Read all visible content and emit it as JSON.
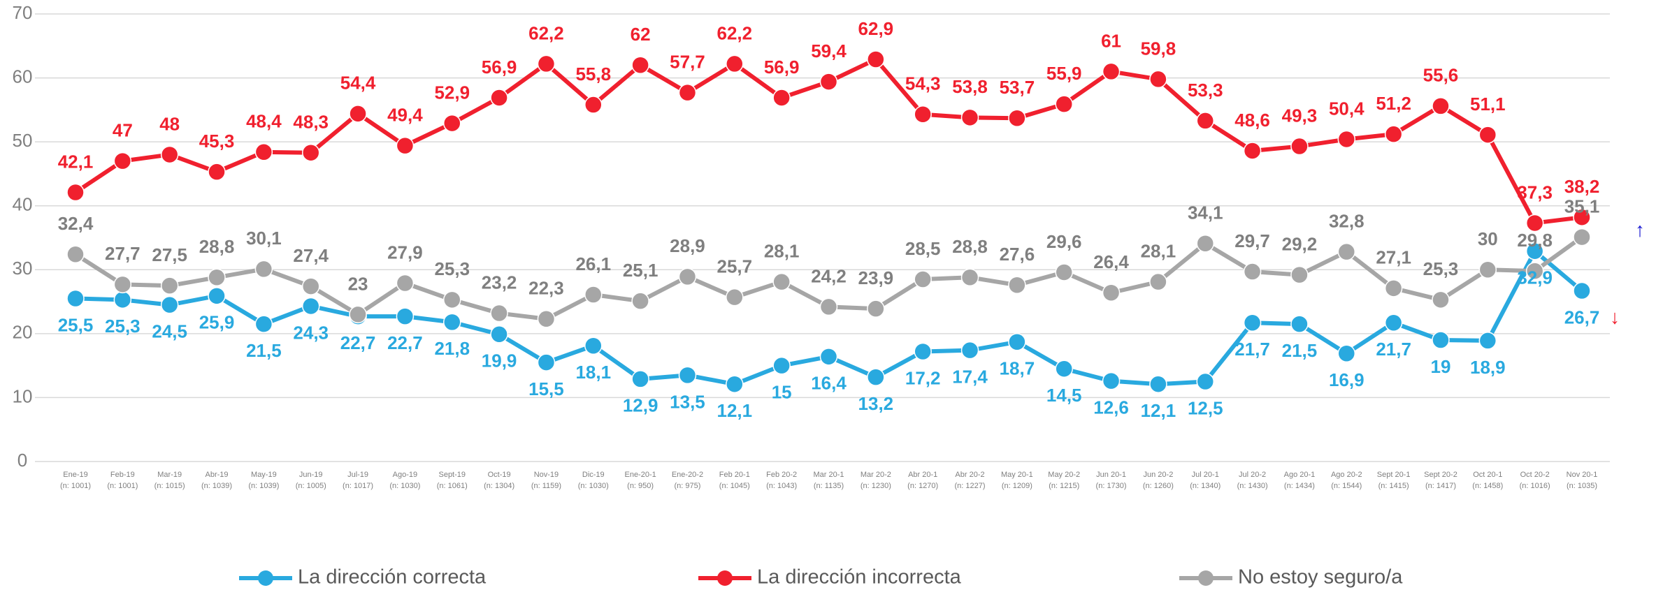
{
  "chart_data": {
    "type": "line",
    "categories": [
      "Ene-19",
      "Feb-19",
      "Mar-19",
      "Abr-19",
      "May-19",
      "Jun-19",
      "Jul-19",
      "Ago-19",
      "Sept-19",
      "Oct-19",
      "Nov-19",
      "Dic-19",
      "Ene-20-1",
      "Ene-20-2",
      "Feb 20-1",
      "Feb 20-2",
      "Mar 20-1",
      "Mar 20-2",
      "Abr 20-1",
      "Abr 20-2",
      "May 20-1",
      "May 20-2",
      "Jun 20-1",
      "Jun 20-2",
      "Jul 20-1",
      "Jul 20-2",
      "Ago 20-1",
      "Ago 20-2",
      "Sept 20-1",
      "Sept 20-2",
      "Oct 20-1",
      "Oct 20-2",
      "Nov 20-1"
    ],
    "category_notes": [
      "(n: 1001)",
      "(n: 1001)",
      "(n: 1015)",
      "(n: 1039)",
      "(n: 1039)",
      "(n: 1005)",
      "(n: 1017)",
      "(n: 1030)",
      "(n: 1061)",
      "(n: 1304)",
      "(n: 1159)",
      "(n: 1030)",
      "(n: 950)",
      "(n: 975)",
      "(n: 1045)",
      "(n: 1043)",
      "(n: 1135)",
      "(n: 1230)",
      "(n: 1270)",
      "(n: 1227)",
      "(n: 1209)",
      "(n: 1215)",
      "(n: 1730)",
      "(n: 1260)",
      "(n: 1340)",
      "(n: 1430)",
      "(n: 1434)",
      "(n: 1544)",
      "(n: 1415)",
      "(n: 1417)",
      "(n: 1458)",
      "(n: 1016)",
      "(n: 1035)"
    ],
    "series": [
      {
        "name": "La dirección correcta",
        "color": "#29a9df",
        "label_color": "#29a9df",
        "labels": "below",
        "values": [
          25.5,
          25.3,
          24.5,
          25.9,
          21.5,
          24.3,
          22.7,
          22.7,
          21.8,
          19.9,
          15.5,
          18.1,
          12.9,
          13.5,
          12.1,
          15,
          16.4,
          13.2,
          17.2,
          17.4,
          18.7,
          14.5,
          12.6,
          12.1,
          12.5,
          21.7,
          21.5,
          16.9,
          21.7,
          19,
          18.9,
          32.9,
          26.7
        ],
        "value_labels": [
          "25,5",
          "25,3",
          "24,5",
          "25,9",
          "21,5",
          "24,3",
          "22,7",
          "22,7",
          "21,8",
          "19,9",
          "15,5",
          "18,1",
          "12,9",
          "13,5",
          "12,1",
          "15",
          "16,4",
          "13,2",
          "17,2",
          "17,4",
          "18,7",
          "14,5",
          "12,6",
          "12,1",
          "12,5",
          "21,7",
          "21,5",
          "16,9",
          "21,7",
          "19",
          "18,9",
          "32,9",
          "26,7"
        ]
      },
      {
        "name": "La dirección incorrecta",
        "color": "#f0202e",
        "label_color": "#f0202e",
        "labels": "above",
        "values": [
          42.1,
          47,
          48,
          45.3,
          48.4,
          48.3,
          54.4,
          49.4,
          52.9,
          56.9,
          62.2,
          55.8,
          62,
          57.7,
          62.2,
          56.9,
          59.4,
          62.9,
          54.3,
          53.8,
          53.7,
          55.9,
          61,
          59.8,
          53.3,
          48.6,
          49.3,
          50.4,
          51.2,
          55.6,
          51.1,
          37.3,
          38.2
        ],
        "value_labels": [
          "42,1",
          "47",
          "48",
          "45,3",
          "48,4",
          "48,3",
          "54,4",
          "49,4",
          "52,9",
          "56,9",
          "62,2",
          "55,8",
          "62",
          "57,7",
          "62,2",
          "56,9",
          "59,4",
          "62,9",
          "54,3",
          "53,8",
          "53,7",
          "55,9",
          "61",
          "59,8",
          "53,3",
          "48,6",
          "49,3",
          "50,4",
          "51,2",
          "55,6",
          "51,1",
          "37,3",
          "38,2"
        ]
      },
      {
        "name": "No estoy seguro/a",
        "color": "#a6a6a6",
        "label_color": "#7f7f7f",
        "labels": "above",
        "values": [
          32.4,
          27.7,
          27.5,
          28.8,
          30.1,
          27.4,
          23,
          27.9,
          25.3,
          23.2,
          22.3,
          26.1,
          25.1,
          28.9,
          25.7,
          28.1,
          24.2,
          23.9,
          28.5,
          28.8,
          27.6,
          29.6,
          26.4,
          28.1,
          34.1,
          29.7,
          29.2,
          32.8,
          27.1,
          25.3,
          30,
          29.8,
          35.1
        ],
        "value_labels": [
          "32,4",
          "27,7",
          "27,5",
          "28,8",
          "30,1",
          "27,4",
          "23",
          "27,9",
          "25,3",
          "23,2",
          "22,3",
          "26,1",
          "25,1",
          "28,9",
          "25,7",
          "28,1",
          "24,2",
          "23,9",
          "28,5",
          "28,8",
          "27,6",
          "29,6",
          "26,4",
          "28,1",
          "34,1",
          "29,7",
          "29,2",
          "32,8",
          "27,1",
          "25,3",
          "30",
          "29,8",
          "35,1"
        ]
      }
    ],
    "annotations": [
      {
        "text": "↑",
        "color": "#1515d0"
      },
      {
        "text": "↓",
        "color": "#f0202e"
      }
    ],
    "ylim": [
      0,
      70
    ],
    "yticks": [
      0,
      10,
      20,
      30,
      40,
      50,
      60,
      70
    ],
    "grid": true,
    "legend": "bottom"
  }
}
